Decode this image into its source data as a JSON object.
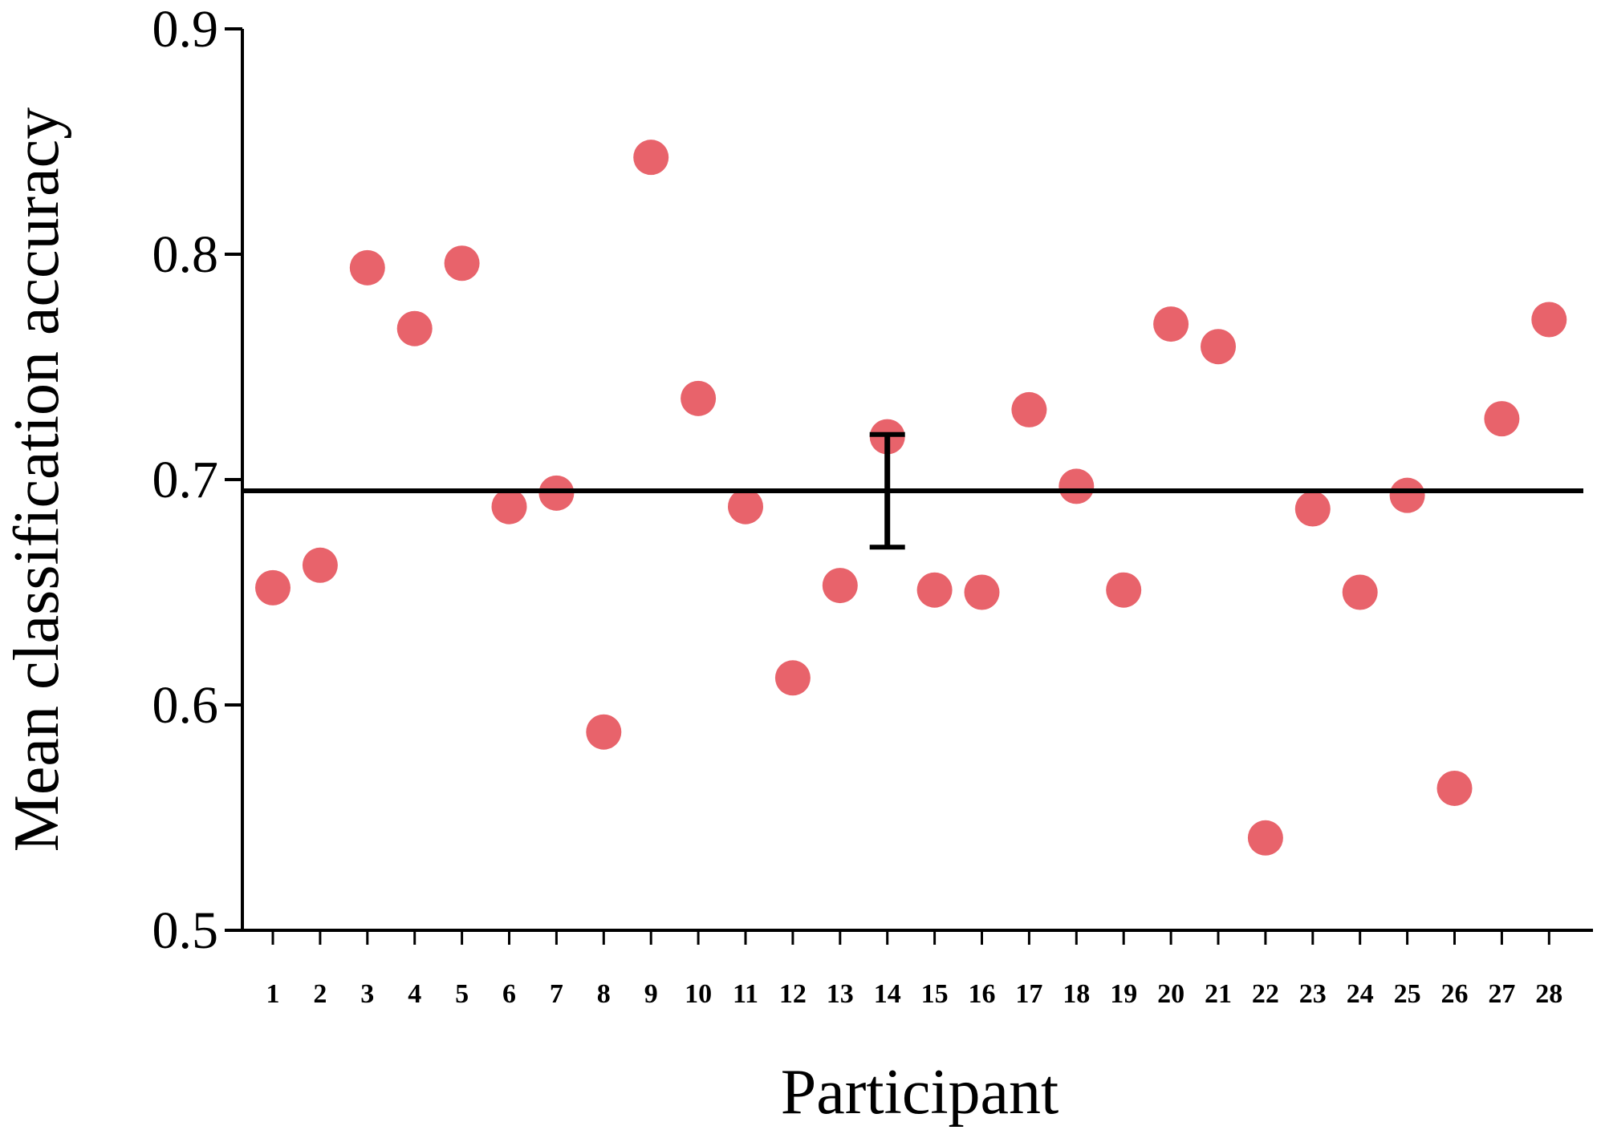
{
  "chart_data": {
    "type": "scatter",
    "title": "",
    "xlabel": "Participant",
    "ylabel": "Mean classification accuracy",
    "ylim": [
      0.5,
      0.9
    ],
    "yticks": [
      "0.5",
      "0.6",
      "0.7",
      "0.8",
      "0.9"
    ],
    "categories": [
      "1",
      "2",
      "3",
      "4",
      "5",
      "6",
      "7",
      "8",
      "9",
      "10",
      "11",
      "12",
      "13",
      "14",
      "15",
      "16",
      "17",
      "18",
      "19",
      "20",
      "21",
      "22",
      "23",
      "24",
      "25",
      "26",
      "27",
      "28"
    ],
    "series": [
      {
        "values": [
          0.652,
          0.662,
          0.794,
          0.767,
          0.796,
          0.688,
          0.694,
          0.588,
          0.843,
          0.736,
          0.688,
          0.612,
          0.653,
          0.719,
          0.651,
          0.65,
          0.731,
          0.697,
          0.651,
          0.769,
          0.759,
          0.541,
          0.687,
          0.65,
          0.693,
          0.563,
          0.727,
          0.771
        ],
        "color": "#e8636b"
      }
    ],
    "mean": 0.695,
    "error_bar": {
      "category": "14",
      "low": 0.67,
      "high": 0.72
    },
    "grid": false,
    "legend": "none"
  }
}
